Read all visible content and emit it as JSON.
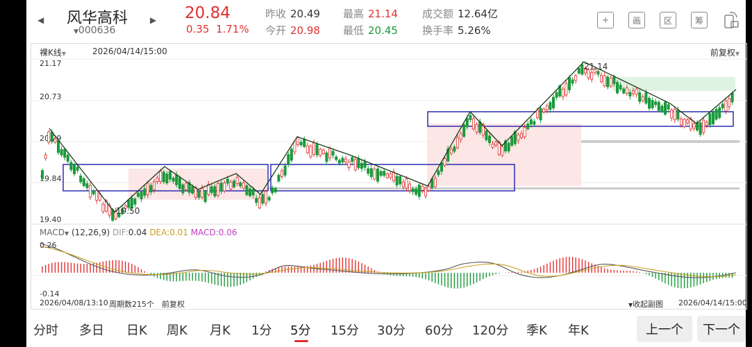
{
  "header": {
    "stock_name": "风华高科",
    "stock_code": "000636",
    "price": "20.84",
    "change": "0.35",
    "change_pct": "1.71%",
    "stats": {
      "prev_close_label": "昨收",
      "prev_close": "20.49",
      "open_label": "今开",
      "open": "20.98",
      "high_label": "最高",
      "high": "21.14",
      "low_label": "最低",
      "low": "20.45",
      "turnover_label": "成交额",
      "turnover": "12.64亿",
      "turnover_rate_label": "换手率",
      "turnover_rate": "5.26%"
    },
    "tools": [
      "+",
      "画",
      "区",
      "筹"
    ]
  },
  "chart": {
    "mode_label": "裸K线",
    "cursor_date": "2026/04/14/15:00",
    "adjust_label": "前复权",
    "y_labels": [
      "21.17",
      "20.73",
      "20.29",
      "19.84",
      "19.40"
    ],
    "annot_high": "21.14",
    "annot_low": "19.50",
    "macd": {
      "title": "MACD",
      "params": "(12,26,9)",
      "dif_label": "DIF:",
      "dif": "0.04",
      "dea_label": "DEA:",
      "dea": "0.01",
      "macd_label": "MACD:",
      "macd": "0.06",
      "y_top": "0.26",
      "y_bottom": "-0.14"
    },
    "bottom_left_date": "2026/04/08/13:10",
    "period_count": "周期数215个",
    "bottom_adjust": "前复权",
    "collapse_label": "收起副图",
    "bottom_right_date": "2026/04/14/15:00"
  },
  "tabs": [
    "分时",
    "多日",
    "日K",
    "周K",
    "月K",
    "1分",
    "5分",
    "15分",
    "30分",
    "60分",
    "120分",
    "季K",
    "年K"
  ],
  "active_tab": "5分",
  "prev_label": "上一个",
  "next_label": "下一个"
}
